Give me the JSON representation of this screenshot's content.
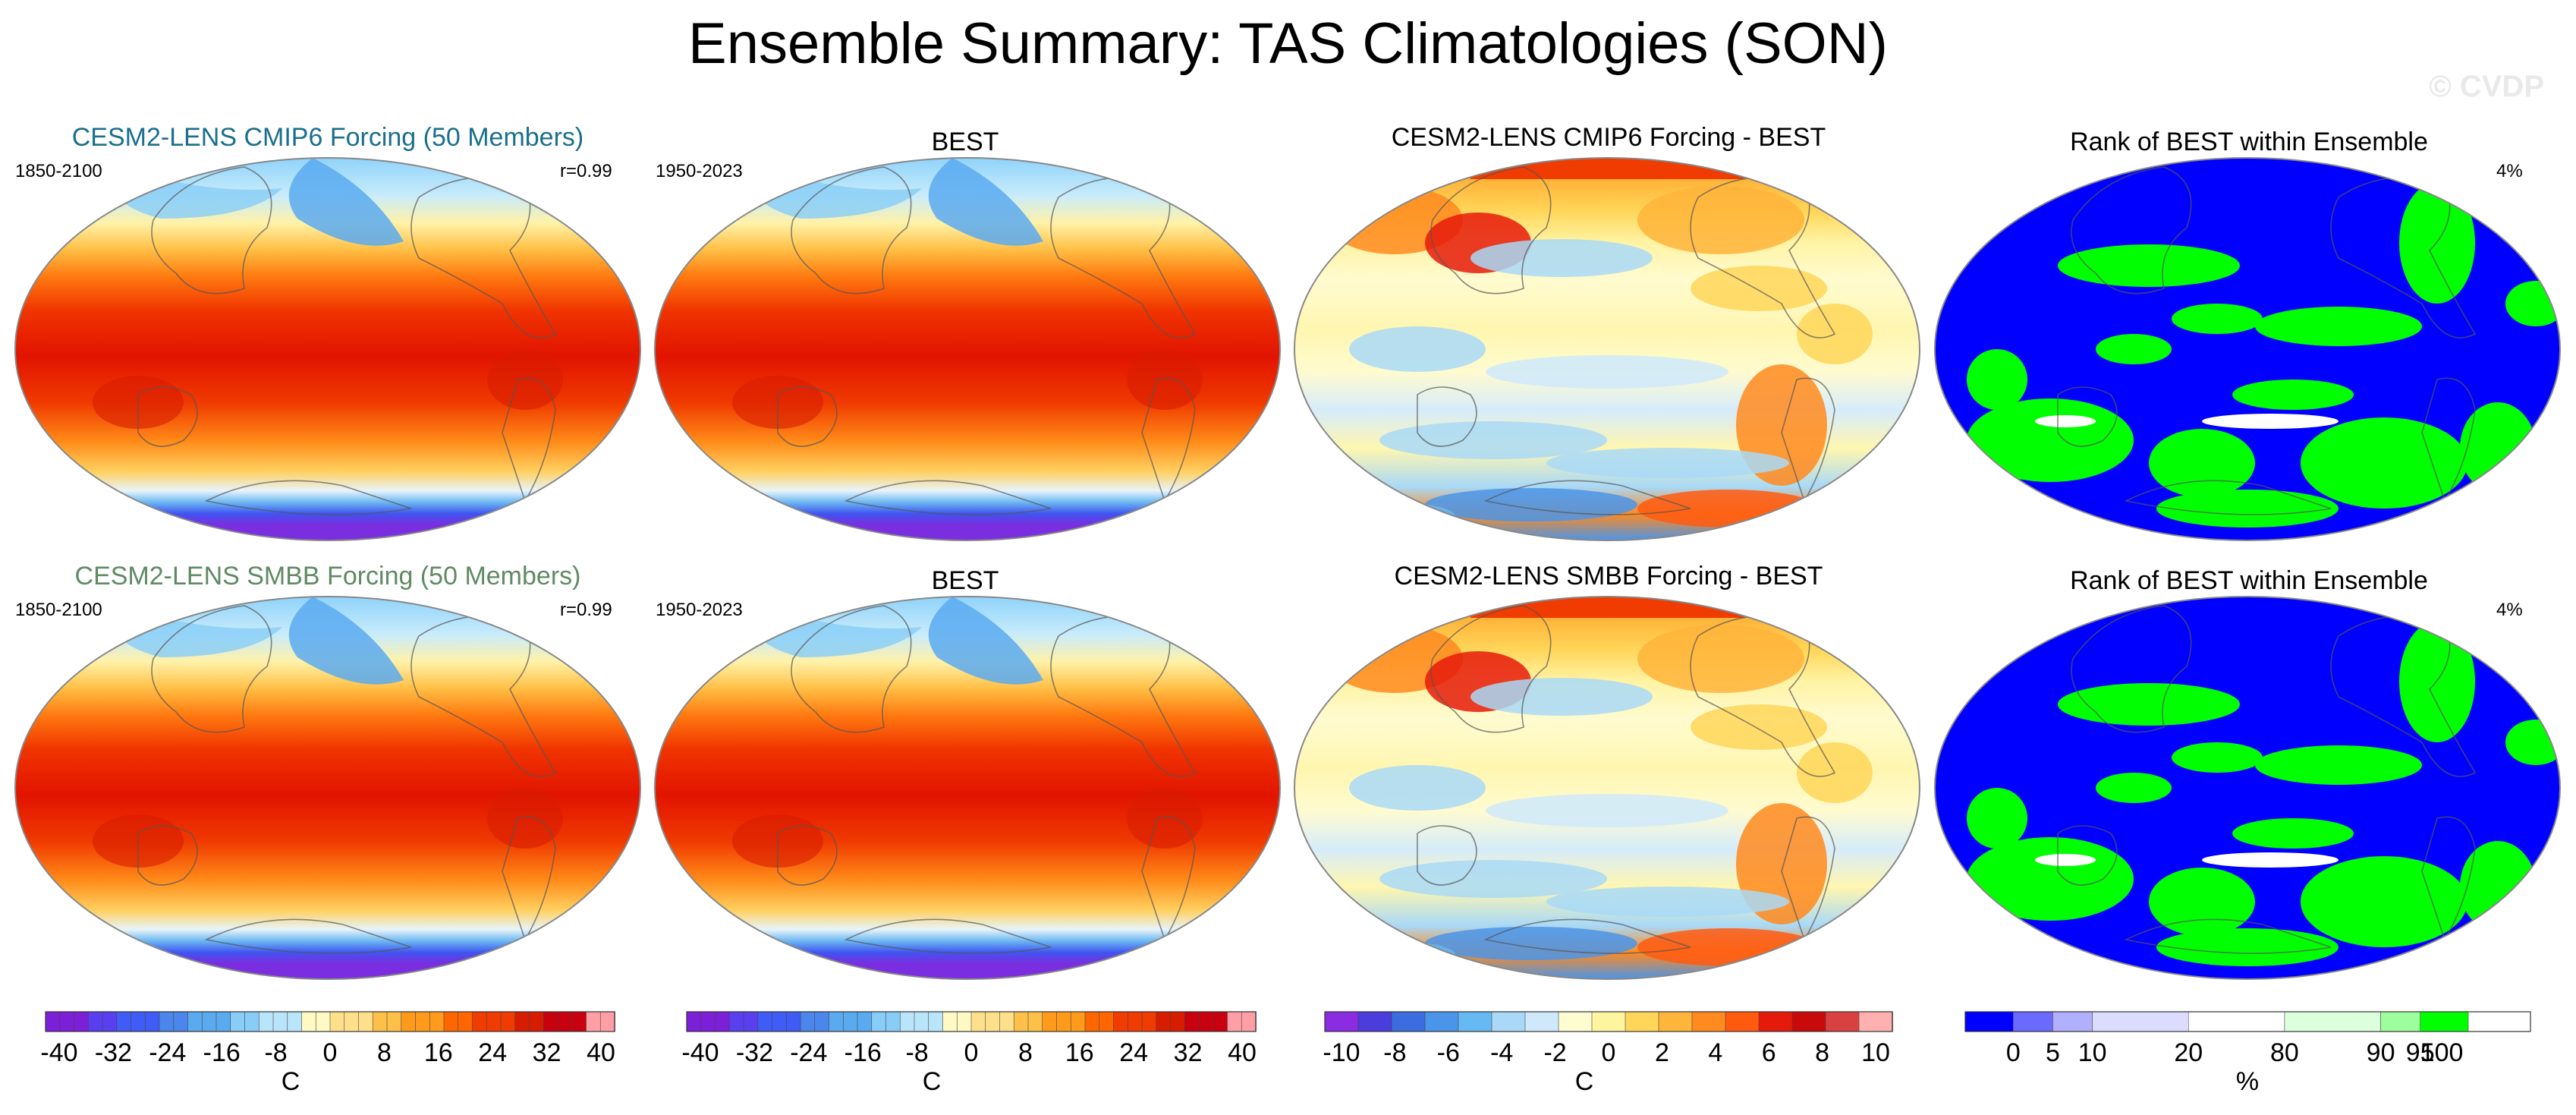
{
  "title": "Ensemble Summary: TAS Climatologies (SON)",
  "watermark": "© CVDP",
  "rows": [
    {
      "model_title": "CESM2-LENS CMIP6 Forcing (50 Members)",
      "model_title_color": "#1a6f8c",
      "model_period": "1850-2100",
      "pattern_corr": "r=0.99",
      "obs_title": "BEST",
      "obs_period": "1950-2023",
      "diff_title": "CESM2-LENS CMIP6 Forcing - BEST",
      "rank_title": "Rank of BEST within Ensemble",
      "rank_pct": "4%"
    },
    {
      "model_title": "CESM2-LENS SMBB Forcing (50 Members)",
      "model_title_color": "#5f8a63",
      "model_period": "1850-2100",
      "pattern_corr": "r=0.99",
      "obs_title": "BEST",
      "obs_period": "1950-2023",
      "diff_title": "CESM2-LENS SMBB Forcing - BEST",
      "rank_title": "Rank of BEST within Ensemble",
      "rank_pct": "4%"
    }
  ],
  "colorbars": {
    "climatology": {
      "ticks": [
        "-40",
        "-32",
        "-24",
        "-16",
        "-8",
        "0",
        "8",
        "16",
        "24",
        "32",
        "40"
      ],
      "unit": "C",
      "range": [
        -40,
        40
      ]
    },
    "difference": {
      "ticks": [
        "-10",
        "-8",
        "-6",
        "-4",
        "-2",
        "0",
        "2",
        "4",
        "6",
        "8",
        "10"
      ],
      "unit": "C",
      "range": [
        -10,
        10
      ]
    },
    "rank": {
      "ticks": [
        "0",
        "5",
        "10",
        "20",
        "80",
        "90",
        "95",
        "100"
      ],
      "unit": "%",
      "bins": [
        0,
        5,
        10,
        20,
        80,
        90,
        95,
        100
      ],
      "colors": [
        "#0000ff",
        "#6a6aff",
        "#b0b0ff",
        "#dcdcff",
        "#ffffff",
        "#dcffdc",
        "#9cff9c",
        "#00ff00"
      ]
    }
  },
  "chart_data": {
    "type": "heatmap",
    "title": "Ensemble Summary: TAS Climatologies (SON)",
    "variable": "TAS",
    "season": "SON",
    "projection": "Robinson (Pacific-centered)",
    "panels": [
      {
        "row": 1,
        "col": 1,
        "title": "CESM2-LENS CMIP6 Forcing (50 Members)",
        "period": "1850-2100",
        "pattern_correlation": 0.99,
        "field": "ensemble-mean climatology",
        "units": "C",
        "range": [
          -40,
          40
        ]
      },
      {
        "row": 1,
        "col": 2,
        "title": "BEST",
        "period": "1950-2023",
        "field": "observed climatology",
        "units": "C",
        "range": [
          -40,
          40
        ]
      },
      {
        "row": 1,
        "col": 3,
        "title": "CESM2-LENS CMIP6 Forcing - BEST",
        "field": "difference",
        "units": "C",
        "range": [
          -10,
          10
        ]
      },
      {
        "row": 1,
        "col": 4,
        "title": "Rank of BEST within Ensemble",
        "area_fraction_label": "4%",
        "field": "rank",
        "units": "%",
        "range": [
          0,
          100
        ]
      },
      {
        "row": 2,
        "col": 1,
        "title": "CESM2-LENS SMBB Forcing (50 Members)",
        "period": "1850-2100",
        "pattern_correlation": 0.99,
        "field": "ensemble-mean climatology",
        "units": "C",
        "range": [
          -40,
          40
        ]
      },
      {
        "row": 2,
        "col": 2,
        "title": "BEST",
        "period": "1950-2023",
        "field": "observed climatology",
        "units": "C",
        "range": [
          -40,
          40
        ]
      },
      {
        "row": 2,
        "col": 3,
        "title": "CESM2-LENS SMBB Forcing - BEST",
        "field": "difference",
        "units": "C",
        "range": [
          -10,
          10
        ]
      },
      {
        "row": 2,
        "col": 4,
        "title": "Rank of BEST within Ensemble",
        "area_fraction_label": "4%",
        "field": "rank",
        "units": "%",
        "range": [
          0,
          100
        ]
      }
    ],
    "palettes": {
      "climatology": [
        "#7b1fd8",
        "#5a3ff0",
        "#3f5cf6",
        "#4a86ec",
        "#5aaaf0",
        "#87cdf8",
        "#b9e5fb",
        "#fff9c4",
        "#ffe08a",
        "#ffc04a",
        "#ff9a1a",
        "#ff6600",
        "#f03c00",
        "#d81c00",
        "#c80010",
        "#ff9ea5"
      ],
      "difference": [
        "#8b2be2",
        "#4b3cdc",
        "#3b6ce0",
        "#4a95ea",
        "#66b9f2",
        "#a9d9f7",
        "#cfe9fb",
        "#fffcd2",
        "#fff59e",
        "#ffd659",
        "#ffb43a",
        "#ff8a1f",
        "#ff5a10",
        "#e61a0a",
        "#c80a0a",
        "#d94040",
        "#ffb0b0"
      ]
    }
  }
}
